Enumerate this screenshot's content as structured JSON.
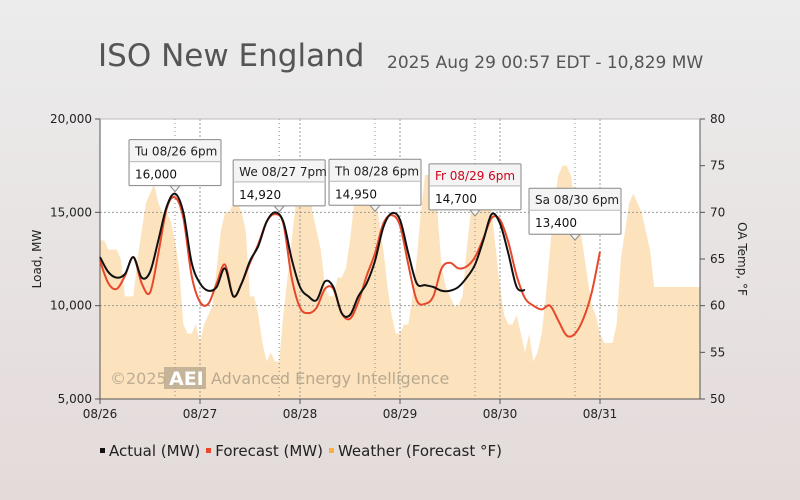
{
  "title": "ISO New England",
  "subtitle": "2025 Aug 29 00:57 EDT - 10,829 MW",
  "watermark": {
    "year": "©2025",
    "logo": "AEI",
    "company": "Advanced Energy Intelligence"
  },
  "legend": [
    {
      "label": "Actual (MW)",
      "color": "#111111"
    },
    {
      "label": "Forecast (MW)",
      "color": "#e8472b"
    },
    {
      "label": "Weather (Forecast °F)",
      "color": "#f5b041"
    }
  ],
  "chart_data": {
    "type": "line",
    "xlabel": "",
    "ylabel": "Load, MW",
    "y2label": "OA Temp, °F",
    "xlim": [
      0,
      144
    ],
    "ylim": [
      5000,
      20000
    ],
    "y2lim": [
      50,
      80
    ],
    "x_tick_labels": [
      "08/26",
      "08/27",
      "08/28",
      "08/29",
      "08/30",
      "08/31"
    ],
    "y_tick_labels": [
      "5,000",
      "10,000",
      "15,000",
      "20,000"
    ],
    "y2_tick_labels": [
      "50",
      "55",
      "60",
      "65",
      "70",
      "75",
      "80"
    ],
    "grid": true,
    "series": [
      {
        "name": "Actual (MW)",
        "color": "#111111",
        "x": [
          0,
          2,
          4,
          6,
          8,
          10,
          12,
          14,
          16,
          18,
          20,
          22,
          24,
          26,
          28,
          30,
          32,
          34,
          36,
          38,
          40,
          42,
          44,
          46,
          48,
          50,
          52,
          54,
          56,
          58,
          60,
          62,
          64,
          66,
          68,
          70,
          72,
          74,
          76,
          78,
          80,
          82,
          84,
          86,
          88,
          90,
          92,
          94,
          96,
          98,
          100,
          102
        ],
        "y": [
          12600,
          11800,
          11500,
          11700,
          12600,
          11500,
          11800,
          13500,
          15300,
          16000,
          15000,
          12300,
          11200,
          10800,
          11000,
          12000,
          10500,
          11200,
          12400,
          13200,
          14500,
          15000,
          14500,
          12500,
          11000,
          10500,
          10300,
          11300,
          11000,
          9600,
          9500,
          10500,
          11200,
          12400,
          14200,
          14950,
          14600,
          12800,
          11200,
          11100,
          11000,
          10800,
          10800,
          11000,
          11500,
          12200,
          13500,
          14900,
          14400,
          12800,
          11000,
          10829
        ]
      },
      {
        "name": "Forecast (MW)",
        "color": "#e8472b",
        "x": [
          0,
          2,
          4,
          6,
          8,
          10,
          12,
          14,
          16,
          18,
          20,
          22,
          24,
          26,
          28,
          30,
          32,
          34,
          36,
          38,
          40,
          42,
          44,
          46,
          48,
          50,
          52,
          54,
          56,
          58,
          60,
          62,
          64,
          66,
          68,
          70,
          72,
          74,
          76,
          78,
          80,
          82,
          84,
          86,
          88,
          90,
          92,
          94,
          96,
          98,
          100,
          102,
          104,
          106,
          108,
          110,
          112,
          114,
          116,
          118,
          120
        ],
        "y": [
          12400,
          11200,
          10900,
          11600,
          12600,
          11200,
          10700,
          12800,
          15200,
          15800,
          14700,
          11600,
          10200,
          10100,
          11200,
          12200,
          10500,
          11200,
          12300,
          13300,
          14500,
          14900,
          14400,
          11500,
          9900,
          9600,
          9900,
          10900,
          10900,
          9600,
          9300,
          10200,
          11600,
          12800,
          14400,
          14850,
          14300,
          12200,
          10300,
          10100,
          10500,
          12000,
          12300,
          12000,
          12100,
          12600,
          13600,
          14700,
          14600,
          13400,
          11600,
          10400,
          10000,
          9800,
          10000,
          9200,
          8400,
          8500,
          9300,
          10700,
          12900
        ]
      }
    ],
    "weather": {
      "name": "Weather (Forecast °F)",
      "color": "#f5b041",
      "opacity": 0.35
    },
    "annotations": [
      {
        "label": "Tu 08/26 6pm",
        "value": "16,000",
        "x": 18,
        "y": 16000,
        "highlight": false
      },
      {
        "label": "We 08/27 7pm",
        "value": "14,920",
        "x": 43,
        "y": 14920,
        "highlight": false
      },
      {
        "label": "Th 08/28 6pm",
        "value": "14,950",
        "x": 66,
        "y": 14950,
        "highlight": false
      },
      {
        "label": "Fr 08/29 6pm",
        "value": "14,700",
        "x": 90,
        "y": 14700,
        "highlight": true
      },
      {
        "label": "Sa 08/30 6pm",
        "value": "13,400",
        "x": 114,
        "y": 13400,
        "highlight": false
      }
    ]
  }
}
